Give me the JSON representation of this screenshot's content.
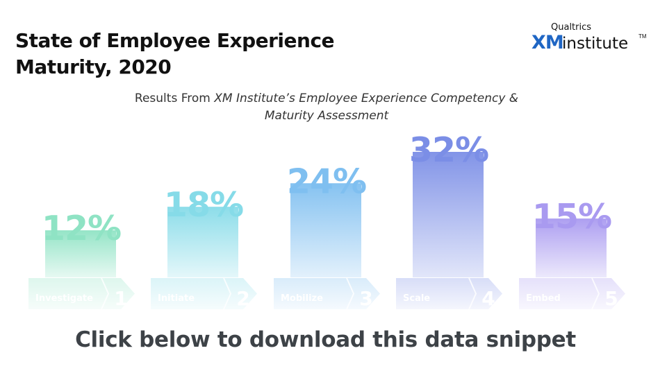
{
  "title_line1": "State of Employee Experience",
  "title_line2": "Maturity, 2020",
  "logo": {
    "brand": "Qualtrics",
    "mark": "XM",
    "name": "institute",
    "tm": "TM"
  },
  "subtitle": {
    "prefix": "Results From ",
    "italic_line1": "XM Institute’s Employee Experience Competency &",
    "italic_line2": "Maturity Assessment"
  },
  "chart_data": {
    "type": "bar",
    "categories": [
      "Investigate",
      "Initiate",
      "Mobilize",
      "Scale",
      "Embed"
    ],
    "stage_numbers": [
      "1",
      "2",
      "3",
      "4",
      "5"
    ],
    "values": [
      12,
      18,
      24,
      32,
      15
    ],
    "value_labels": [
      "12%",
      "18%",
      "24%",
      "32%",
      "15%"
    ],
    "colors": [
      "#8fe3c4",
      "#86dbe8",
      "#7fbff0",
      "#7b8ee6",
      "#a99af0"
    ],
    "ylim": [
      0,
      32
    ]
  },
  "cta": "Click below to download this data snippet"
}
